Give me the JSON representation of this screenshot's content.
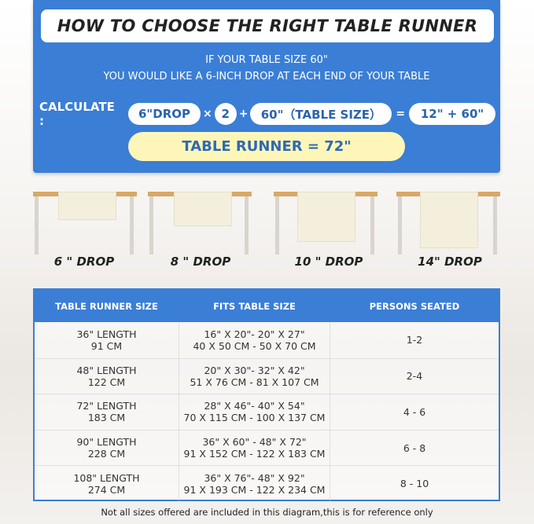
{
  "title": "HOW TO CHOOSE THE RIGHT TABLE RUNNER",
  "subtitle_lines": [
    "IF YOUR TABLE SIZE 60\"",
    "YOU WOULD LIKE A 6-INCH DROP AT EACH END OF YOUR TABLE"
  ],
  "calc": {
    "label": "CALCULATE :",
    "drop": "6\"DROP",
    "times": "×",
    "multiplier": "2",
    "plus": "+",
    "table_size": "60\"（TABLE SIZE）",
    "equals": "=",
    "sum": "12\" + 60\""
  },
  "result": "TABLE RUNNER = 72\"",
  "drops": [
    "6 \" DROP",
    "8 \" DROP",
    "10 \" DROP",
    "14\" DROP"
  ],
  "colors": {
    "primary_blue": "#3a7ed6",
    "result_yellow": "#fdf6b8",
    "table_wood": "#d8a865"
  },
  "table": {
    "headers": [
      "TABLE RUNNER SIZE",
      "FITS TABLE SIZE",
      "PERSONS SEATED"
    ],
    "rows": [
      {
        "size": [
          "36\" LENGTH",
          "91 CM"
        ],
        "fits": [
          "16\" X 20\"- 20\" X 27\"",
          "40 X 50 CM - 50 X 70 CM"
        ],
        "persons": "1-2"
      },
      {
        "size": [
          "48\" LENGTH",
          "122 CM"
        ],
        "fits": [
          "20\" X 30\"- 32\" X 42\"",
          "51 X 76 CM - 81 X 107 CM"
        ],
        "persons": "2-4"
      },
      {
        "size": [
          "72\" LENGTH",
          "183 CM"
        ],
        "fits": [
          "28\" X 46\"- 40\" X 54\"",
          "70 X 115 CM - 100 X 137 CM"
        ],
        "persons": "4 - 6"
      },
      {
        "size": [
          "90\" LENGTH",
          "228 CM"
        ],
        "fits": [
          "36\" X 60\" - 48\" X 72\"",
          "91 X 152 CM - 122 X 183 CM"
        ],
        "persons": "6 - 8"
      },
      {
        "size": [
          "108\" LENGTH",
          "274 CM"
        ],
        "fits": [
          "36\" X 76\"- 48\" X 92\"",
          "91 X 193 CM - 122 X 234 CM"
        ],
        "persons": "8 - 10"
      }
    ]
  },
  "footnote": "Not all sizes offered are included in this diagram,this is for reference only"
}
